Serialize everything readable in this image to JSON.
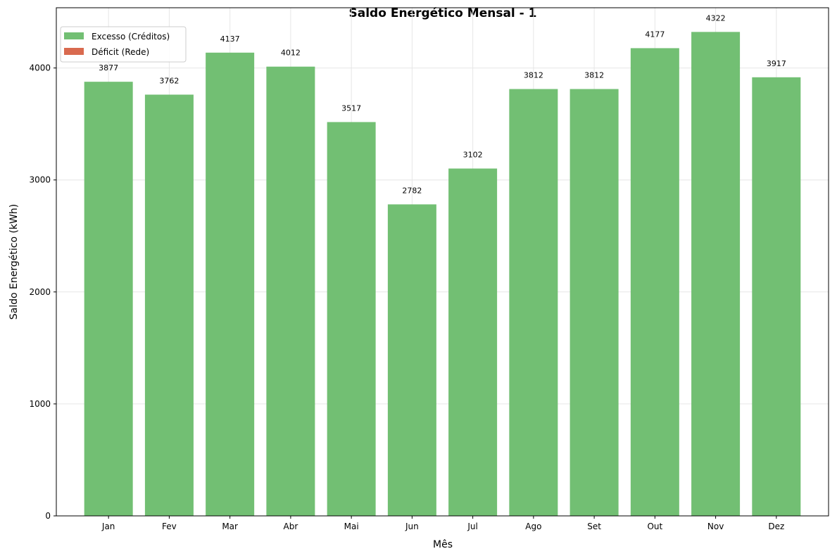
{
  "chart_data": {
    "type": "bar",
    "title": "Saldo Energético Mensal - 1",
    "xlabel": "Mês",
    "ylabel": "Saldo Energético (kWh)",
    "categories": [
      "Jan",
      "Fev",
      "Mar",
      "Abr",
      "Mai",
      "Jun",
      "Jul",
      "Ago",
      "Set",
      "Out",
      "Nov",
      "Dez"
    ],
    "series": [
      {
        "name": "Excesso (Créditos)",
        "color": "#72bf73",
        "values": [
          3877,
          3762,
          4137,
          4012,
          3517,
          2782,
          3102,
          3812,
          3812,
          4177,
          4322,
          3917
        ]
      },
      {
        "name": "Déficit (Rede)",
        "color": "#d96a4f",
        "values": [
          0,
          0,
          0,
          0,
          0,
          0,
          0,
          0,
          0,
          0,
          0,
          0
        ]
      }
    ],
    "data_labels": [
      "3877",
      "3762",
      "4137",
      "4012",
      "3517",
      "2782",
      "3102",
      "3812",
      "3812",
      "4177",
      "4322",
      "3917"
    ],
    "yticks": [
      0,
      1000,
      2000,
      3000,
      4000
    ],
    "ytick_labels": [
      "0",
      "1000",
      "2000",
      "3000",
      "4000"
    ],
    "ylim": [
      0,
      4538
    ],
    "grid": true,
    "legend_position": "top-left"
  }
}
